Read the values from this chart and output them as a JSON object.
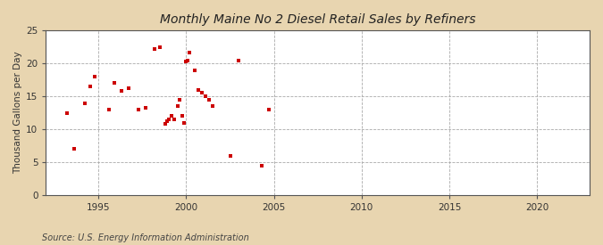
{
  "title": "Monthly Maine No 2 Diesel Retail Sales by Refiners",
  "ylabel": "Thousand Gallons per Day",
  "source": "Source: U.S. Energy Information Administration",
  "fig_background_color": "#e8d5b0",
  "plot_background_color": "#ffffff",
  "marker_color": "#cc0000",
  "marker_size": 12,
  "xlim": [
    1992,
    2023
  ],
  "ylim": [
    0,
    25
  ],
  "xticks": [
    1995,
    2000,
    2005,
    2010,
    2015,
    2020
  ],
  "yticks": [
    0,
    5,
    10,
    15,
    20,
    25
  ],
  "x": [
    1993.2,
    1993.6,
    1994.2,
    1994.5,
    1994.8,
    1995.6,
    1995.9,
    1996.3,
    1996.7,
    1997.3,
    1997.7,
    1998.2,
    1998.5,
    1998.8,
    1998.9,
    1999.0,
    1999.15,
    1999.3,
    1999.5,
    1999.6,
    1999.75,
    1999.85,
    2000.0,
    2000.1,
    2000.2,
    2000.5,
    2000.7,
    2000.9,
    2001.1,
    2001.3,
    2001.5,
    2002.5,
    2003.0,
    2004.3,
    2004.7
  ],
  "y": [
    12.5,
    7.0,
    14.0,
    16.5,
    18.0,
    13.0,
    17.0,
    15.8,
    16.2,
    13.0,
    13.2,
    22.2,
    22.5,
    10.8,
    11.2,
    11.5,
    12.0,
    11.5,
    13.5,
    14.5,
    12.0,
    11.0,
    20.3,
    20.5,
    21.7,
    19.0,
    16.0,
    15.5,
    15.0,
    14.5,
    13.5,
    6.0,
    20.5,
    4.4,
    13.0
  ]
}
